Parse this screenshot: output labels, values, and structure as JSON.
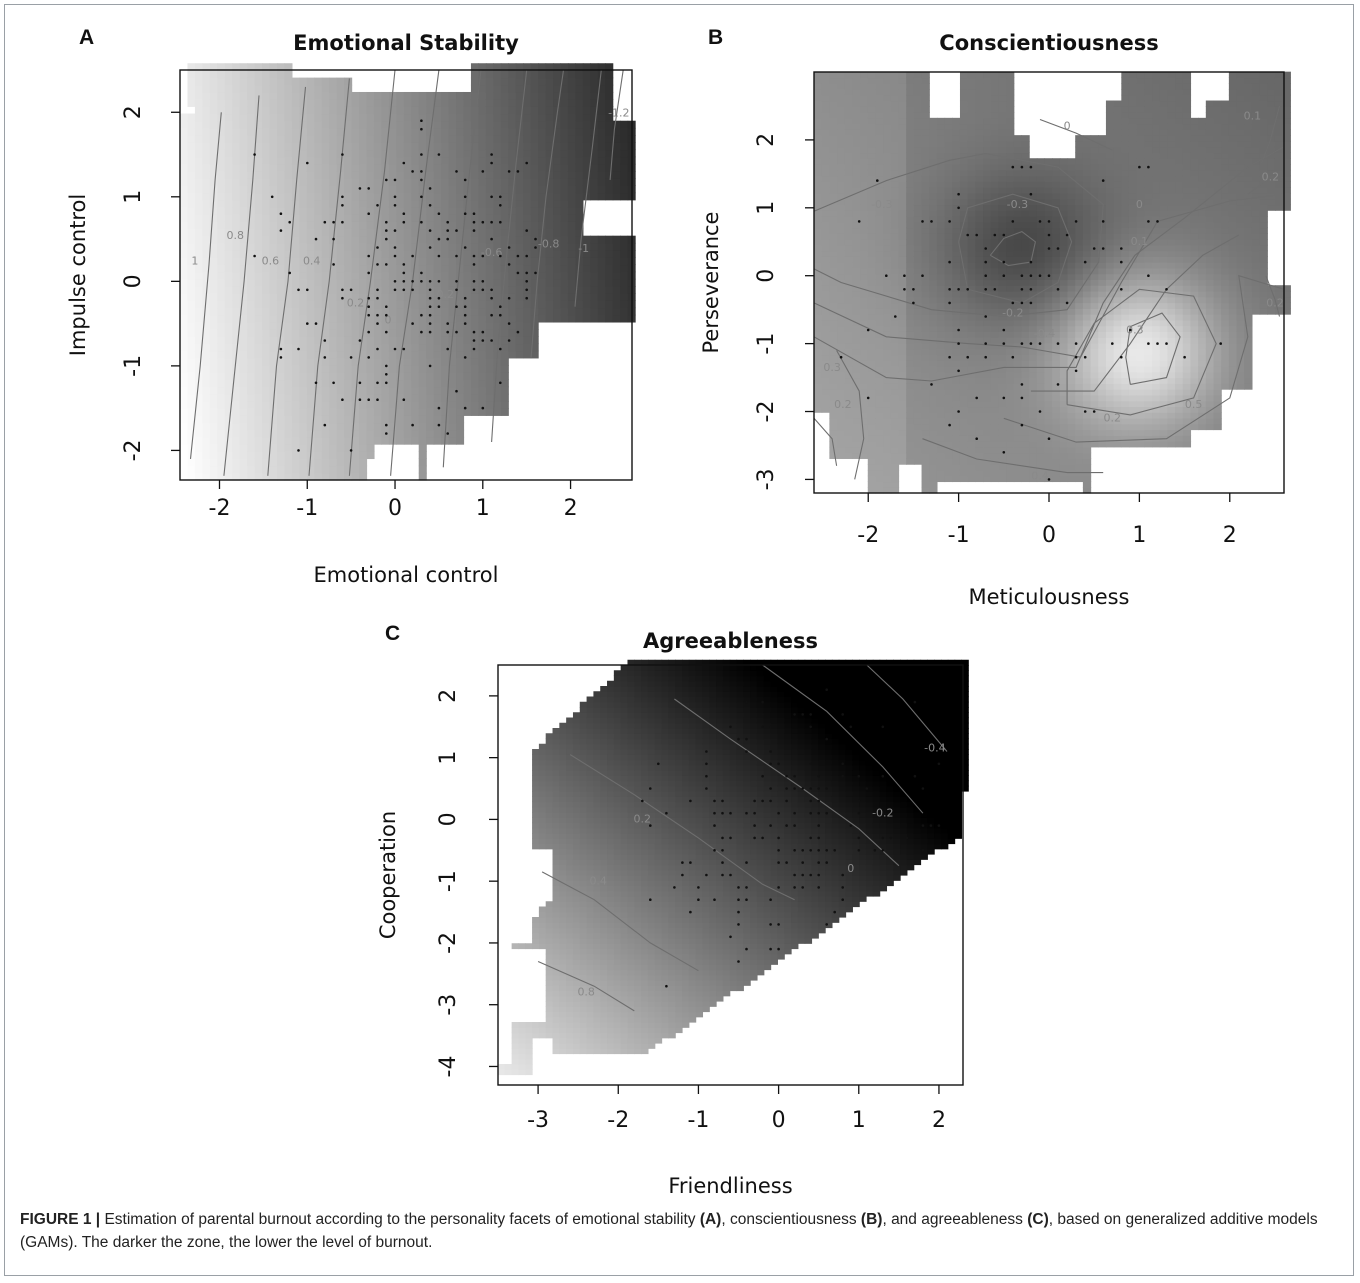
{
  "figure": {
    "caption": {
      "label": "FIGURE 1 |",
      "part1": " Estimation of parental burnout according to the personality facets of emotional stability ",
      "refA": "(A)",
      "part2": ", conscientiousness ",
      "refB": "(B)",
      "part3": ", and agreeableness ",
      "refC": "(C)",
      "part4": ", based on generalized additive models (GAMs). The darker the zone, the lower the level of burnout."
    }
  },
  "chart_data": [
    {
      "panel": "A",
      "type": "heatmap",
      "title": "Emotional Stability",
      "xlabel": "Emotional control",
      "ylabel": "Impulse control",
      "xlim": [
        -2.45,
        2.7
      ],
      "ylim": [
        -2.35,
        2.5
      ],
      "xticks": [
        "-2",
        "-1",
        "0",
        "1",
        "2"
      ],
      "yticks": [
        "-2",
        "-1",
        "0",
        "1",
        "2"
      ],
      "shading": "gray; darker = lower burnout",
      "contour_labels": [
        "1",
        "0.8",
        "0.6",
        "0.4",
        "0.2",
        "0",
        "-0.2",
        "-0.6",
        "-0.8",
        "-1",
        "-1.2"
      ]
    },
    {
      "panel": "B",
      "type": "heatmap",
      "title": "Conscientiousness",
      "xlabel": "Meticulousness",
      "ylabel": "Perseverance",
      "xlim": [
        -2.6,
        2.6
      ],
      "ylim": [
        -3.2,
        3.0
      ],
      "xticks": [
        "-2",
        "-1",
        "0",
        "1",
        "2"
      ],
      "yticks": [
        "-3",
        "-2",
        "-1",
        "0",
        "1",
        "2"
      ],
      "shading": "gray; darker = lower burnout",
      "contour_labels": [
        "-0.3",
        "-0.3",
        "-0.2",
        "-0.4",
        "0",
        "0.1",
        "0.3",
        "0.2",
        "0.5",
        "0.4",
        "0.3",
        "0.2",
        "0.1",
        "0.2",
        "0.2",
        "0"
      ]
    },
    {
      "panel": "C",
      "type": "heatmap",
      "title": "Agreeableness",
      "xlabel": "Friendliness",
      "ylabel": "Cooperation",
      "xlim": [
        -3.5,
        2.3
      ],
      "ylim": [
        -4.3,
        2.5
      ],
      "xticks": [
        "-3",
        "-2",
        "-1",
        "0",
        "1",
        "2"
      ],
      "yticks": [
        "-4",
        "-3",
        "-2",
        "-1",
        "0",
        "1",
        "2"
      ],
      "shading": "gray; darker = lower burnout",
      "contour_labels": [
        "0.8",
        "0.4",
        "0.2",
        "0",
        "-0.2",
        "-0.4"
      ]
    }
  ]
}
